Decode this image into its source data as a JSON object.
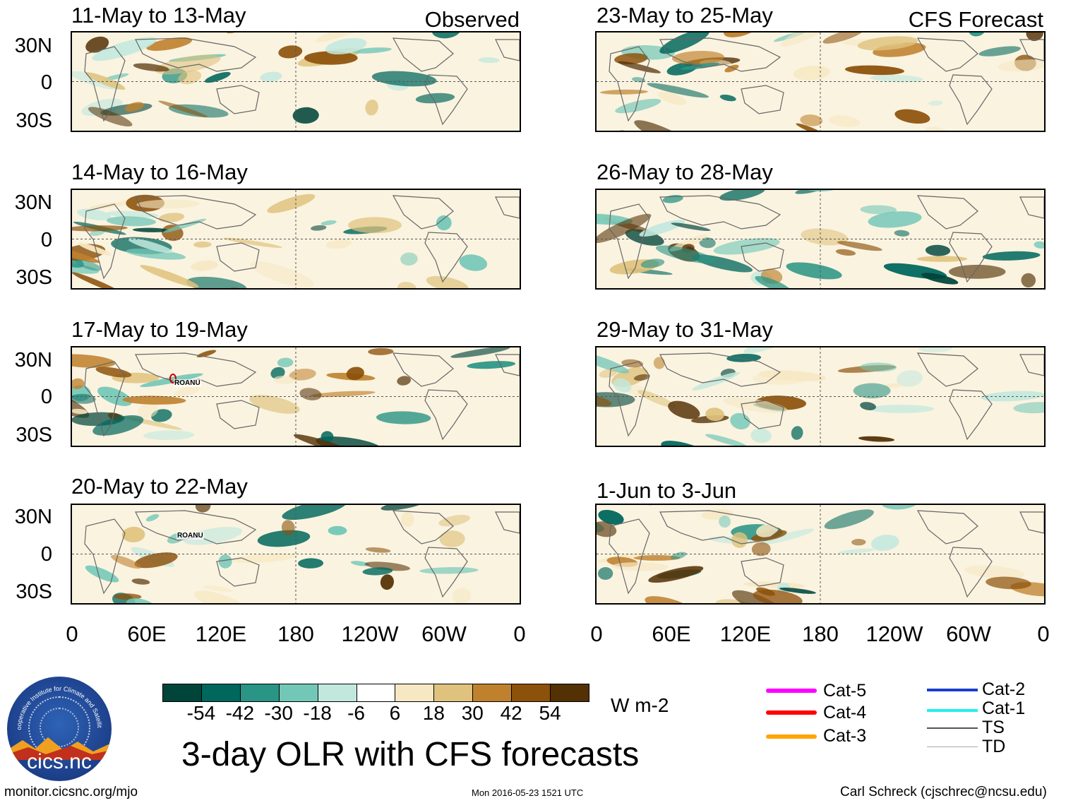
{
  "panels": [
    {
      "title": "11-May to 13-May",
      "tag": "Observed"
    },
    {
      "title": "23-May to 25-May",
      "tag": "CFS Forecast"
    },
    {
      "title": "14-May to 16-May",
      "tag": ""
    },
    {
      "title": "26-May to 28-May",
      "tag": ""
    },
    {
      "title": "17-May to 19-May",
      "tag": ""
    },
    {
      "title": "29-May to 31-May",
      "tag": ""
    },
    {
      "title": "20-May to 22-May",
      "tag": ""
    },
    {
      "title": "1-Jun to 3-Jun",
      "tag": ""
    }
  ],
  "lat_labels": [
    "30N",
    "0",
    "30S"
  ],
  "lon_labels": [
    "0",
    "60E",
    "120E",
    "180",
    "120W",
    "60W",
    "0"
  ],
  "storm_labels": {
    "obs3": "ROANU",
    "obs4": "ROANU"
  },
  "colorbar": {
    "units": "W m-2",
    "colors": [
      "#00443a",
      "#00675c",
      "#2a9485",
      "#72c7b7",
      "#c2e8de",
      "#ffffff",
      "#f6e8c3",
      "#dfc27d",
      "#bf812d",
      "#8c510a",
      "#543005"
    ],
    "ticks": [
      "-54",
      "-42",
      "-30",
      "-18",
      "-6",
      "6",
      "18",
      "30",
      "42",
      "54"
    ]
  },
  "main_title": "3-day OLR with CFS forecasts",
  "legend": [
    {
      "label": "Cat-5",
      "color": "#ff00ff"
    },
    {
      "label": "Cat-4",
      "color": "#ff0000"
    },
    {
      "label": "Cat-3",
      "color": "#ffa500"
    },
    {
      "label": "Cat-2",
      "color": "#1a3fcc"
    },
    {
      "label": "Cat-1",
      "color": "#22f0f0"
    },
    {
      "label": "TS",
      "color": "#555555"
    },
    {
      "label": "TD",
      "color": "#aaaaaa"
    }
  ],
  "logo": {
    "text": "cics.nc",
    "arc_text": "Cooperative Institute for Climate and Satellites"
  },
  "footer": {
    "url": "monitor.cicsnc.org/mjo",
    "timestamp": "Mon 2016-05-23 1521 UTC",
    "author": "Carl Schreck (cjschrec@ncsu.edu)"
  }
}
